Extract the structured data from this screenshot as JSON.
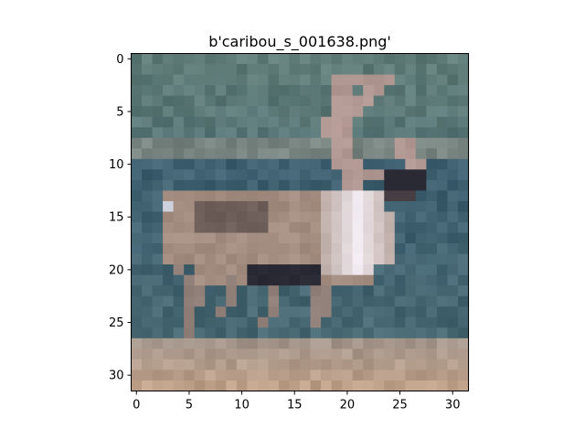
{
  "figure": {
    "title": "b'caribou_s_001638.png'"
  },
  "axes": {
    "x_ticks": [
      "0",
      "5",
      "10",
      "15",
      "20",
      "25",
      "30"
    ],
    "y_ticks": [
      "0",
      "5",
      "10",
      "15",
      "20",
      "25",
      "30"
    ],
    "extent": [
      -0.5,
      31.5
    ]
  },
  "image": {
    "width": 32,
    "height": 32,
    "description_colors": {
      "background_top": "#5f7c78",
      "background_mid": "#3e6070",
      "ground": "#bfa089",
      "deer_body": "#a38c80",
      "deer_chest": "#f0eaf0",
      "deer_dark": "#2a2a33"
    }
  }
}
